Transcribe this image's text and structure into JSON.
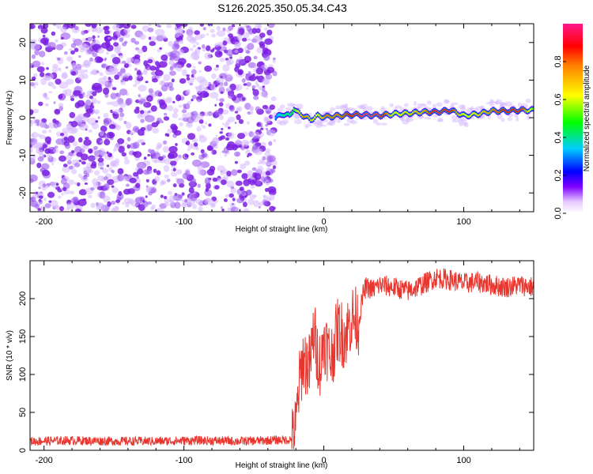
{
  "figure": {
    "title": "S126.2025.350.05.34.C43"
  },
  "chart_data": [
    {
      "type": "heatmap",
      "title": "S126.2025.350.05.34.C43",
      "xlabel": "Height of straight line (km)",
      "ylabel": "Frequency (Hz)",
      "xlim": [
        -210,
        150
      ],
      "ylim": [
        -25,
        25
      ],
      "xticks": [
        -200,
        -100,
        0,
        100
      ],
      "yticks": [
        -20,
        -10,
        0,
        10,
        20
      ],
      "noise_region_x": [
        -210,
        -35
      ],
      "ridge": {
        "x": [
          -35,
          -30,
          -25,
          -22,
          -20,
          -15,
          -10,
          -5,
          0,
          10,
          20,
          30,
          40,
          50,
          60,
          70,
          80,
          90,
          100,
          110,
          120,
          130,
          140,
          150
        ],
        "freq": [
          0.0,
          1.0,
          0.5,
          2.5,
          1.5,
          0.5,
          -0.5,
          0.5,
          0.2,
          0.5,
          0.8,
          0.7,
          0.6,
          1.0,
          1.2,
          1.5,
          1.5,
          2.0,
          0.5,
          1.0,
          1.8,
          1.8,
          2.0,
          2.0
        ],
        "amplitude": [
          0.3,
          0.4,
          0.4,
          0.5,
          0.6,
          0.8,
          0.7,
          0.6,
          0.8,
          0.8,
          0.9,
          1.0,
          0.95,
          0.6,
          0.7,
          0.75,
          0.95,
          0.9,
          0.6,
          0.7,
          0.8,
          0.9,
          0.9,
          0.5
        ]
      },
      "colorbar": {
        "label": "Normalized spectral amplitude",
        "range": [
          0.0,
          1.0
        ],
        "ticks": [
          0.0,
          0.2,
          0.4,
          0.6,
          0.8
        ],
        "tick_labels": [
          "0.0",
          "0.2",
          "0.4",
          "0.6",
          "0.8"
        ],
        "colors": [
          "#ffffff",
          "#d9b3ff",
          "#8000ff",
          "#0000ff",
          "#00ffff",
          "#00ff00",
          "#ffff00",
          "#ff8000",
          "#ff0000",
          "#ff1a8c"
        ]
      },
      "noise_color": "#7a1fe0"
    },
    {
      "type": "line",
      "xlabel": "Height of straight line (km)",
      "ylabel": "SNR (10 * v/v)",
      "xlim": [
        -210,
        150
      ],
      "ylim": [
        0,
        250
      ],
      "xticks": [
        -200,
        -100,
        0,
        100
      ],
      "yticks": [
        0,
        50,
        100,
        150,
        200
      ],
      "series": [
        {
          "color": "#e8362f",
          "x": [
            -210,
            -180,
            -150,
            -120,
            -90,
            -60,
            -40,
            -22,
            -20,
            -18,
            -15,
            -10,
            -7,
            -5,
            -2,
            0,
            5,
            10,
            15,
            20,
            25,
            28,
            30,
            35,
            40,
            50,
            60,
            70,
            80,
            90,
            100,
            110,
            120,
            130,
            140,
            150
          ],
          "values": [
            12,
            13,
            12,
            12,
            13,
            12,
            13,
            14,
            30,
            80,
            120,
            110,
            160,
            130,
            110,
            150,
            120,
            160,
            150,
            175,
            170,
            205,
            215,
            212,
            218,
            215,
            210,
            218,
            228,
            225,
            220,
            222,
            218,
            215,
            218,
            215
          ]
        }
      ]
    }
  ]
}
